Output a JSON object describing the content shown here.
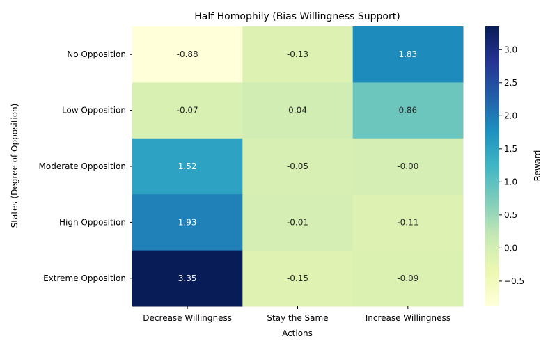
{
  "chart_data": {
    "type": "heatmap",
    "title": "Half Homophily (Bias Willingness Support)",
    "xlabel": "Actions",
    "ylabel": "States (Degree of Opposition)",
    "x_categories": [
      "Decrease Willingness",
      "Stay the Same",
      "Increase Willingness"
    ],
    "y_categories": [
      "No Opposition",
      "Low Opposition",
      "Moderate Opposition",
      "High Opposition",
      "Extreme Opposition"
    ],
    "values": [
      [
        -0.88,
        -0.13,
        1.83
      ],
      [
        -0.07,
        0.04,
        0.86
      ],
      [
        1.52,
        -0.05,
        -0.0
      ],
      [
        1.93,
        -0.01,
        -0.11
      ],
      [
        3.35,
        -0.15,
        -0.09
      ]
    ],
    "value_labels": [
      [
        "-0.88",
        "-0.13",
        "1.83"
      ],
      [
        "-0.07",
        "0.04",
        "0.86"
      ],
      [
        "1.52",
        "-0.05",
        "-0.00"
      ],
      [
        "1.93",
        "-0.01",
        "-0.11"
      ],
      [
        "3.35",
        "-0.15",
        "-0.09"
      ]
    ],
    "colormap": "YlGnBu",
    "vmin": -0.88,
    "vmax": 3.35,
    "colorbar": {
      "label": "Reward",
      "ticks": [
        -0.5,
        0.0,
        0.5,
        1.0,
        1.5,
        2.0,
        2.5,
        3.0
      ],
      "tick_labels": [
        "−0.5",
        "0.0",
        "0.5",
        "1.0",
        "1.5",
        "2.0",
        "2.5",
        "3.0"
      ]
    }
  }
}
